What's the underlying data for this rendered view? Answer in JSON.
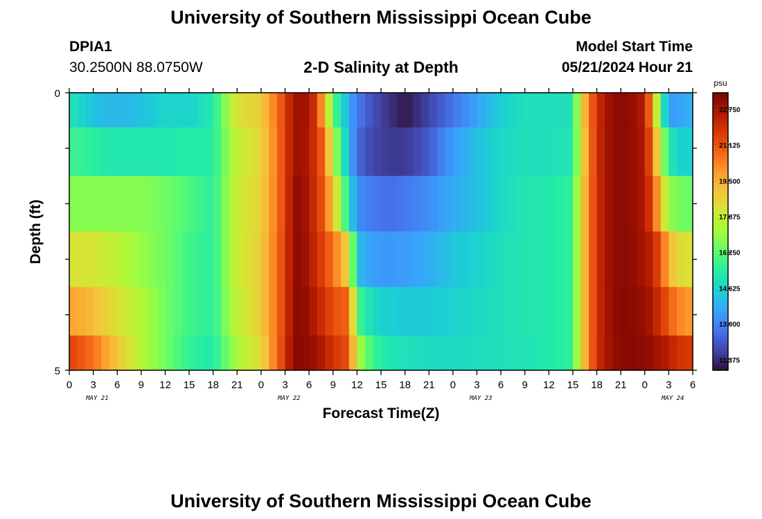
{
  "header": {
    "title": "University of Southern Mississippi Ocean Cube",
    "station_id": "DPIA1",
    "coords": "30.2500N  88.0750W",
    "subtitle": "2-D Salinity at Depth",
    "start_label": "Model Start Time",
    "start_value": "05/21/2024 Hour 21"
  },
  "footer": {
    "title": "University of Southern Mississippi Ocean Cube"
  },
  "colors": {
    "colormap": [
      "#30123b",
      "#4145ab",
      "#4675ed",
      "#39a2fc",
      "#1bcfd4",
      "#24eca6",
      "#61fc6c",
      "#a4fc3b",
      "#d1e834",
      "#f3c63a",
      "#fe9b2d",
      "#f36315",
      "#d93806",
      "#b11901",
      "#7a0402"
    ]
  },
  "chart_data": {
    "type": "heatmap",
    "xlabel": "Forecast Time(Z)",
    "ylabel": "Depth (ft)",
    "x_tick_labels": [
      "0",
      "3",
      "6",
      "9",
      "12",
      "15",
      "18",
      "21",
      "0",
      "3",
      "6",
      "9",
      "12",
      "15",
      "18",
      "21",
      "0",
      "3",
      "6",
      "9",
      "12",
      "15",
      "18",
      "21",
      "0",
      "3",
      "6"
    ],
    "x_day_labels": [
      {
        "text": "MAY 21",
        "at_hour": 3.5
      },
      {
        "text": "MAY 22",
        "at_hour": 27.5
      },
      {
        "text": "MAY 23",
        "at_hour": 51.5
      },
      {
        "text": "MAY 24",
        "at_hour": 75.5
      }
    ],
    "x_range_hours": [
      0,
      78
    ],
    "y_tick_labels": [
      "0",
      "5"
    ],
    "y_range_ft": [
      0,
      5
    ],
    "depth_layers_ft": [
      0.25,
      1.0,
      2.0,
      3.0,
      4.0,
      4.75
    ],
    "colorbar": {
      "unit": "psu",
      "tick_labels": [
        "11.375",
        "13.000",
        "14.625",
        "16.250",
        "17.875",
        "19.500",
        "21.125",
        "22.750"
      ],
      "range": [
        10.9,
        23.5
      ]
    },
    "time_keyframes_hours": [
      0,
      3,
      6,
      9,
      12,
      15,
      18,
      21,
      24,
      27,
      28,
      29,
      30,
      31,
      32,
      33,
      35,
      36,
      38,
      40,
      42,
      45,
      48,
      51,
      54,
      57,
      60,
      63,
      64,
      66,
      68,
      70,
      72,
      73,
      74,
      75,
      76,
      78
    ],
    "salinity_keyframes": [
      [
        15.2,
        14.2,
        14.0,
        14.2,
        14.7,
        14.6,
        15.3,
        18.3,
        18.8,
        21.5,
        22.8,
        23.0,
        22.7,
        21.5,
        19.0,
        16.2,
        13.8,
        12.8,
        12.0,
        11.5,
        11.0,
        11.8,
        12.7,
        13.6,
        14.5,
        15.0,
        15.0,
        15.0,
        18.5,
        22.0,
        23.2,
        23.2,
        22.5,
        19.5,
        16.0,
        13.5,
        13.5,
        14.0
      ],
      [
        15.8,
        15.5,
        15.2,
        15.2,
        15.2,
        15.4,
        15.4,
        17.8,
        18.6,
        21.5,
        22.8,
        23.0,
        22.5,
        21.7,
        20.5,
        17.5,
        14.0,
        12.5,
        11.8,
        11.6,
        11.6,
        12.2,
        13.5,
        14.2,
        14.8,
        15.0,
        15.0,
        15.2,
        18.2,
        22.0,
        23.2,
        23.2,
        22.6,
        20.5,
        17.5,
        15.5,
        14.6,
        14.6
      ],
      [
        16.8,
        16.8,
        16.8,
        16.8,
        16.5,
        16.0,
        15.5,
        18.0,
        18.7,
        21.5,
        23.0,
        23.2,
        22.5,
        21.8,
        20.8,
        19.0,
        15.0,
        13.2,
        12.8,
        12.6,
        12.8,
        13.2,
        13.8,
        14.2,
        14.8,
        15.2,
        15.3,
        15.6,
        18.5,
        22.0,
        23.2,
        23.2,
        22.6,
        21.3,
        19.0,
        17.0,
        16.6,
        16.4
      ],
      [
        18.2,
        18.2,
        17.7,
        17.0,
        16.5,
        15.8,
        15.5,
        18.0,
        18.8,
        21.6,
        23.0,
        23.3,
        22.6,
        22.0,
        21.2,
        20.6,
        18.5,
        14.2,
        13.5,
        13.4,
        13.5,
        13.8,
        14.3,
        14.6,
        15.0,
        15.2,
        15.3,
        15.6,
        18.5,
        22.0,
        23.2,
        23.2,
        22.8,
        22.2,
        21.0,
        19.5,
        18.5,
        18.2
      ],
      [
        19.8,
        19.2,
        18.3,
        17.5,
        16.5,
        15.8,
        15.5,
        17.8,
        18.8,
        21.6,
        23.1,
        23.3,
        22.9,
        22.3,
        21.8,
        21.2,
        20.8,
        16.0,
        14.8,
        14.5,
        14.4,
        14.4,
        14.6,
        14.8,
        15.0,
        15.2,
        15.3,
        15.6,
        18.5,
        22.0,
        23.2,
        23.3,
        23.0,
        22.6,
        21.8,
        21.0,
        20.3,
        19.8
      ],
      [
        21.5,
        20.6,
        19.0,
        17.5,
        16.5,
        15.6,
        15.3,
        17.3,
        18.5,
        21.8,
        23.2,
        23.3,
        23.1,
        22.9,
        22.4,
        21.8,
        21.2,
        17.5,
        15.7,
        15.2,
        15.0,
        14.9,
        14.8,
        14.9,
        15.0,
        15.1,
        15.3,
        15.6,
        18.5,
        22.0,
        23.1,
        23.3,
        23.2,
        23.0,
        22.7,
        22.5,
        21.9,
        21.6
      ]
    ]
  }
}
